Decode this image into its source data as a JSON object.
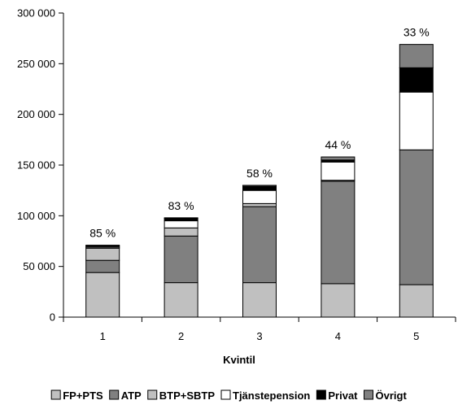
{
  "chart_data": {
    "type": "bar",
    "stacked": true,
    "title": "",
    "xlabel": "Kvintil",
    "ylabel": "",
    "categories": [
      "1",
      "2",
      "3",
      "4",
      "5"
    ],
    "ylim": [
      0,
      300000
    ],
    "yticks": [
      0,
      50000,
      100000,
      150000,
      200000,
      250000,
      300000
    ],
    "ytick_labels": [
      "0",
      "50 000",
      "100 000",
      "150 000",
      "200 000",
      "250 000",
      "300 000"
    ],
    "grid": false,
    "legend_position": "bottom",
    "series": [
      {
        "name": "FP+PTS",
        "color": "#c0c0c0",
        "values": [
          44000,
          34000,
          34000,
          33000,
          32000
        ]
      },
      {
        "name": "ATP",
        "color": "#808080",
        "values": [
          12000,
          46000,
          75000,
          101000,
          133000
        ]
      },
      {
        "name": "BTP+SBTP",
        "color": "#c0c0c0",
        "values": [
          12000,
          8000,
          3000,
          1000,
          0
        ]
      },
      {
        "name": "Tjänstepension",
        "color": "#ffffff",
        "values": [
          1000,
          7000,
          13000,
          18000,
          57000
        ]
      },
      {
        "name": "Privat",
        "color": "#000000",
        "values": [
          1000,
          2500,
          4000,
          2000,
          24000
        ]
      },
      {
        "name": "Övrigt",
        "color": "#808080",
        "values": [
          1000,
          500,
          1000,
          3000,
          23000
        ]
      }
    ],
    "annotations": [
      "85 %",
      "83 %",
      "58 %",
      "44 %",
      "33 %"
    ]
  }
}
